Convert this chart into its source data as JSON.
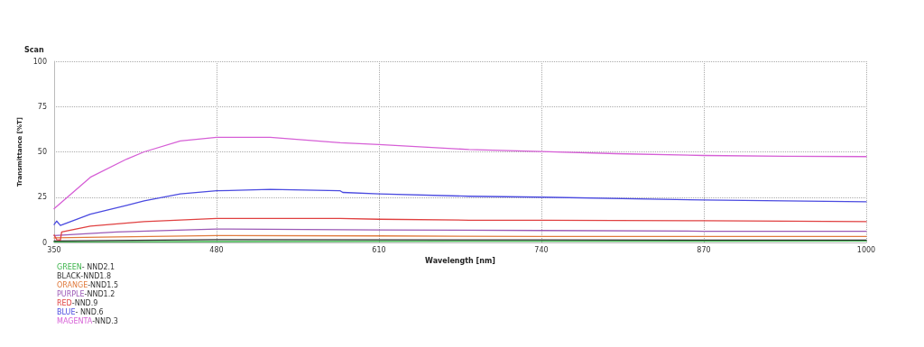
{
  "chart_data": {
    "type": "line",
    "title": "Scan",
    "xlabel": "Wavelength [nm]",
    "ylabel": "Transmittance [%T]",
    "xlim": [
      350,
      1000
    ],
    "xticks": [
      350,
      480,
      610,
      740,
      870,
      1000
    ],
    "ylim": [
      0,
      100
    ],
    "yticks": [
      0,
      25,
      50,
      75,
      100
    ],
    "grid": true,
    "legend": "bottom left",
    "line_style": "solid",
    "series": [
      {
        "name": "GREEN- NND2.1",
        "color": "#3cb44b",
        "x": [
          350,
          480,
          740,
          1000
        ],
        "values": [
          0.3,
          0.5,
          0.7,
          0.8
        ]
      },
      {
        "name": "BLACK-NND1.8",
        "color": "#333333",
        "x": [
          350,
          480,
          740,
          1000
        ],
        "values": [
          0.8,
          1.6,
          1.4,
          1.3
        ]
      },
      {
        "name": "ORANGE-NND1.5",
        "color": "#e07a3c",
        "x": [
          350,
          400,
          480,
          610,
          740,
          1000
        ],
        "values": [
          2.5,
          3.0,
          3.8,
          3.6,
          3.3,
          3.3
        ]
      },
      {
        "name": "PURPLE-NND1.2",
        "color": "#9b59b6",
        "x": [
          350,
          400,
          480,
          610,
          740,
          870,
          1000
        ],
        "values": [
          3.8,
          5.8,
          7.4,
          6.9,
          6.6,
          6.2,
          6.2
        ]
      },
      {
        "name": "RED-NND.9",
        "color": "#e04040",
        "x": [
          350,
          352,
          355,
          356,
          379,
          422,
          480,
          579,
          610,
          682,
          740,
          870,
          1000
        ],
        "values": [
          4.1,
          1.6,
          1.3,
          5.8,
          9,
          11.5,
          13.2,
          13.2,
          12.8,
          12.3,
          12.3,
          12,
          11.5
        ]
      },
      {
        "name": "BLUE- NND.6",
        "color": "#4a4ae0",
        "x": [
          350,
          352,
          355,
          379,
          408,
          422,
          451,
          480,
          523,
          579,
          581,
          610,
          682,
          740,
          870,
          1000
        ],
        "values": [
          9.9,
          11.8,
          9.4,
          15.6,
          20.5,
          23,
          26.8,
          28.5,
          29.3,
          28.5,
          27.6,
          26.8,
          25.5,
          25,
          23.4,
          22.5
        ]
      },
      {
        "name": "MAGENTA-NND.3",
        "color": "#d65fd6",
        "x": [
          350,
          379,
          408,
          422,
          451,
          480,
          523,
          579,
          610,
          682,
          740,
          800,
          870,
          935,
          1000
        ],
        "values": [
          18.6,
          36,
          46,
          50,
          56,
          58,
          58,
          55,
          54,
          51.3,
          50.2,
          49,
          48,
          47.6,
          47.4
        ]
      }
    ]
  }
}
